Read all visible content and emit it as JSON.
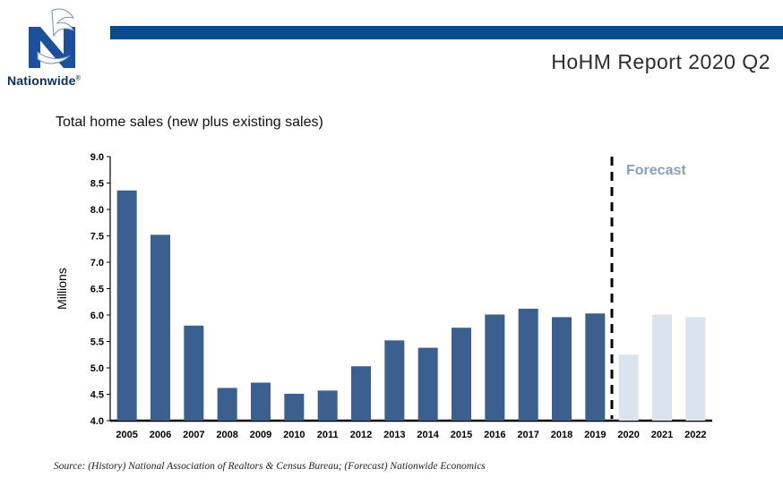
{
  "brand": {
    "name": "Nationwide",
    "trademark": "®"
  },
  "header": {
    "report_title": "HoHM Report 2020 Q2",
    "bar_color": "#0a4a8a"
  },
  "colors": {
    "history": "#3b5f8e",
    "forecast": "#dbe4ee",
    "forecast_label": "#8a9fbd"
  },
  "chart_data": {
    "type": "bar",
    "title": "Total home sales (new plus existing sales)",
    "xlabel": "",
    "ylabel": "Millions",
    "ylim": [
      4.0,
      9.0
    ],
    "yticks": [
      "4.0",
      "4.5",
      "5.0",
      "5.5",
      "6.0",
      "6.5",
      "7.0",
      "7.5",
      "8.0",
      "8.5",
      "9.0"
    ],
    "categories": [
      "2005",
      "2006",
      "2007",
      "2008",
      "2009",
      "2010",
      "2011",
      "2012",
      "2013",
      "2014",
      "2015",
      "2016",
      "2017",
      "2018",
      "2019",
      "2020",
      "2021",
      "2022"
    ],
    "values": [
      8.36,
      7.52,
      5.8,
      4.62,
      4.72,
      4.51,
      4.57,
      5.03,
      5.52,
      5.38,
      5.76,
      6.01,
      6.12,
      5.96,
      6.03,
      5.25,
      6.01,
      5.96
    ],
    "forecast_start_index": 15,
    "forecast_label": "Forecast",
    "grid": false,
    "legend": "none"
  },
  "source_note": "Source: (History) National Association of Realtors & Census Bureau; (Forecast) Nationwide Economics"
}
